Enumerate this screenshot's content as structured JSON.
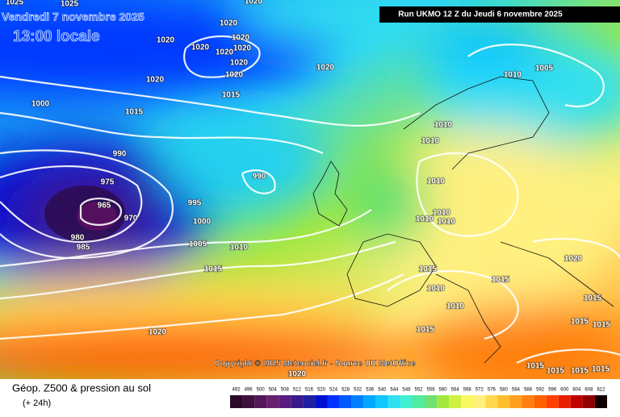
{
  "header": {
    "date": "Vendredi 7 novembre 2025",
    "time": "13:00 locale",
    "run": "Run UKMO 12 Z du Jeudi 6 novembre 2025"
  },
  "copyright": "Copyright © 2025 Meteociel.fr - Source UK MetOffice",
  "footer": {
    "title": "Géop. Z500 & pression au sol",
    "lead": "(+ 24h)"
  },
  "isobar_labels": [
    1025,
    1025,
    1020,
    1020,
    1020,
    1020,
    1020,
    1020,
    1020,
    1020,
    1020,
    1020,
    1020,
    1015,
    1015,
    1000,
    1010,
    1005,
    1010,
    1010,
    990,
    990,
    975,
    965,
    970,
    995,
    1000,
    980,
    985,
    1005,
    1010,
    1015,
    1010,
    1010,
    1010,
    1010,
    1015,
    1010,
    1010,
    1015,
    1020,
    1015,
    1015,
    1015,
    1020,
    1015,
    1020,
    1015,
    1015,
    1015,
    1015
  ],
  "scale": {
    "values": [
      492,
      496,
      500,
      504,
      508,
      512,
      516,
      520,
      524,
      528,
      532,
      536,
      540,
      544,
      548,
      552,
      556,
      560,
      564,
      568,
      572,
      576,
      580,
      584,
      588,
      592,
      596,
      600,
      604,
      608,
      612
    ],
    "colors": [
      "#2a0a2a",
      "#3e103e",
      "#54185a",
      "#6a2070",
      "#5a1a80",
      "#3a1a8a",
      "#2020a0",
      "#0010d0",
      "#0030ff",
      "#0058ff",
      "#0080ff",
      "#00a8ff",
      "#10c8ff",
      "#30e0f0",
      "#40f0d0",
      "#50eaa0",
      "#70e070",
      "#a0e840",
      "#d0f040",
      "#f8f860",
      "#fff080",
      "#ffd850",
      "#ffc030",
      "#ffa020",
      "#ff8010",
      "#ff6000",
      "#ff4000",
      "#e82000",
      "#c00000",
      "#900000",
      "#100000"
    ]
  }
}
